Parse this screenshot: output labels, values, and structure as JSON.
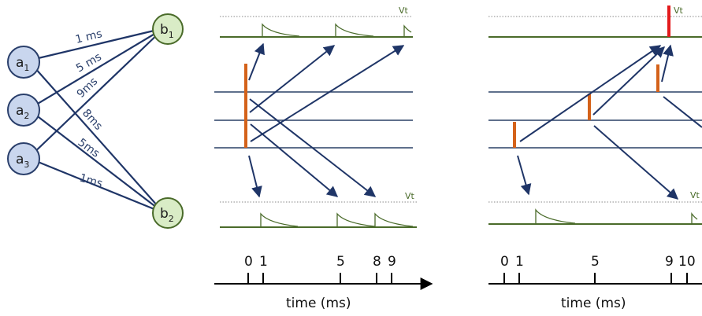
{
  "network": {
    "inputs": [
      {
        "id": "a1",
        "base": "a",
        "sub": "1"
      },
      {
        "id": "a2",
        "base": "a",
        "sub": "2"
      },
      {
        "id": "a3",
        "base": "a",
        "sub": "3"
      }
    ],
    "outputs": [
      {
        "id": "b1",
        "base": "b",
        "sub": "1"
      },
      {
        "id": "b2",
        "base": "b",
        "sub": "2"
      }
    ],
    "edges": [
      {
        "from": "a1",
        "to": "b1",
        "label": "1 ms"
      },
      {
        "from": "a2",
        "to": "b1",
        "label": "5 ms"
      },
      {
        "from": "a3",
        "to": "b1",
        "label": "9ms"
      },
      {
        "from": "a1",
        "to": "b2",
        "label": "8ms"
      },
      {
        "from": "a2",
        "to": "b2",
        "label": "5ms"
      },
      {
        "from": "a3",
        "to": "b2",
        "label": "1ms"
      }
    ]
  },
  "panel1": {
    "threshold_label": "Vt",
    "threshold_label_bottom": "Vt",
    "ticks": [
      "0",
      "1",
      "5",
      "8",
      "9"
    ],
    "axis_label": "time (ms)"
  },
  "panel2": {
    "threshold_label": "Vt",
    "threshold_label_bottom": "Vt",
    "ticks": [
      "0",
      "1",
      "5",
      "9",
      "10"
    ],
    "axis_label": "time (ms)"
  },
  "colors": {
    "input_fill": "#c9d6ee",
    "output_fill": "#d9ecc6",
    "edge": "#1f3567",
    "input_line": "#2a4066",
    "output_line": "#4a6b2a",
    "spike": "#d4621a",
    "output_spike": "#e31a1c"
  }
}
